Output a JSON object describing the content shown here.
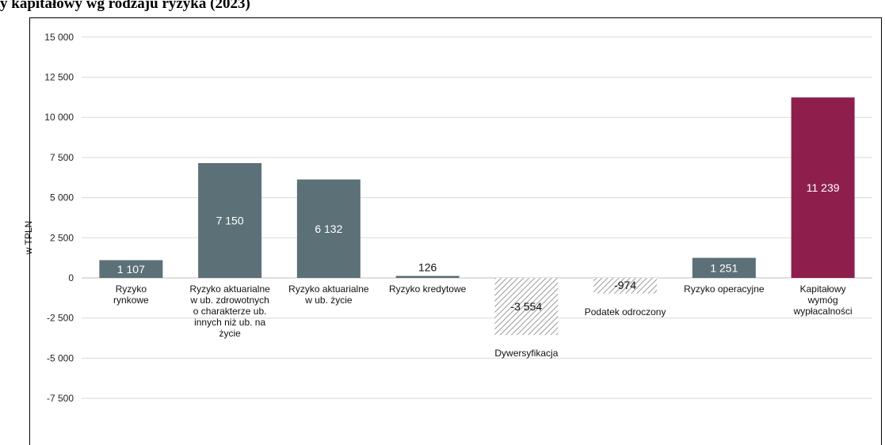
{
  "page": {
    "title": "y kapitałowy wg rodzaju ryzyka (2023)"
  },
  "chart_data": {
    "type": "bar",
    "title": "",
    "ylabel": "w TPLN",
    "xlabel": "",
    "ylim": [
      -7500,
      15000
    ],
    "yticks": [
      15000,
      12500,
      10000,
      7500,
      5000,
      2500,
      0,
      -2500,
      -5000,
      -7500
    ],
    "ytick_labels": [
      "15 000",
      "12 500",
      "10 000",
      "7 500",
      "5 000",
      "2 500",
      "0",
      "-2 500",
      "-5 000",
      "-7 500"
    ],
    "grid": true,
    "categories": [
      [
        "Ryzyko",
        "rynkowe"
      ],
      [
        "Ryzyko aktuarialne",
        "w ub. zdrowotnych",
        "o charakterze ub.",
        "innych niż ub. na",
        "życie"
      ],
      [
        "Ryzyko aktuarialne",
        "w ub. życie"
      ],
      [
        "Ryzyko kredytowe"
      ],
      [
        "Dywersyfikacja"
      ],
      [
        "Podatek odroczony"
      ],
      [
        "Ryzyko operacyjne"
      ],
      [
        "Kapitałowy",
        "wymóg",
        "wypłacalności"
      ]
    ],
    "values": [
      1107,
      7150,
      6132,
      126,
      -3554,
      -974,
      1251,
      11239
    ],
    "labels": [
      "1 107",
      "7 150",
      "6 132",
      "126",
      "-3 554",
      "-974",
      "1 251",
      "11 239"
    ],
    "styles": [
      "solid",
      "solid",
      "solid",
      "solid",
      "hatched",
      "hatched",
      "solid",
      "total"
    ],
    "colors": {
      "solid": "#5c7078",
      "total": "#8e1f4c",
      "hatch": "#9a9a9a",
      "grid": "#d9d9d9"
    }
  }
}
